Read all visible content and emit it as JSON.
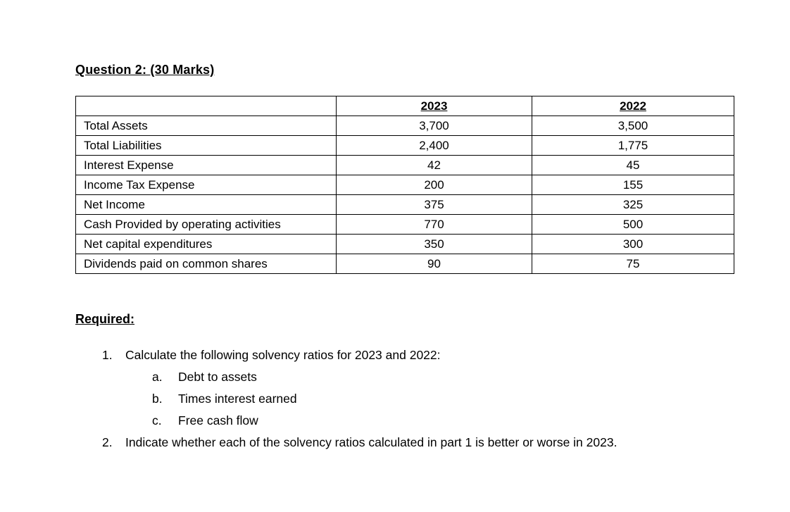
{
  "document": {
    "title": "Question 2: (30 Marks)"
  },
  "table": {
    "columns": {
      "label": "",
      "year1": "2023",
      "year2": "2022"
    },
    "rows": [
      {
        "label": "Total Assets",
        "y2023": "3,700",
        "y2022": "3,500"
      },
      {
        "label": "Total Liabilities",
        "y2023": "2,400",
        "y2022": "1,775"
      },
      {
        "label": "Interest Expense",
        "y2023": "42",
        "y2022": "45"
      },
      {
        "label": "Income Tax Expense",
        "y2023": "200",
        "y2022": "155"
      },
      {
        "label": "Net Income",
        "y2023": "375",
        "y2022": "325"
      },
      {
        "label": "Cash Provided by operating activities",
        "y2023": "770",
        "y2022": "500"
      },
      {
        "label": "Net capital expenditures",
        "y2023": "350",
        "y2022": "300"
      },
      {
        "label": "Dividends paid on common shares",
        "y2023": "90",
        "y2022": "75"
      }
    ]
  },
  "required": {
    "heading": "Required:",
    "item1": {
      "number": "1.",
      "text": "Calculate the following solvency ratios for 2023 and 2022:",
      "sub_a": {
        "letter": "a.",
        "text": "Debt to assets"
      },
      "sub_b": {
        "letter": "b.",
        "text": "Times interest earned"
      },
      "sub_c": {
        "letter": "c.",
        "text": "Free cash flow"
      }
    },
    "item2": {
      "number": "2.",
      "text": "Indicate whether each of the solvency ratios calculated in part 1 is better or worse in 2023."
    }
  }
}
